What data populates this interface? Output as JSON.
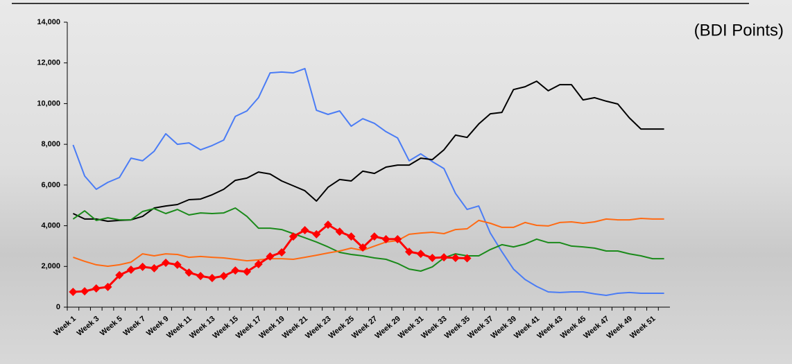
{
  "chart_data": {
    "type": "line",
    "annotation": "(BDI Points)",
    "categories": [
      "Week 1",
      null,
      "Week 3",
      null,
      "Week 5",
      null,
      "Week 7",
      null,
      "Week 9",
      null,
      "Week 11",
      null,
      "Week 13",
      null,
      "Week 15",
      null,
      "Week 17",
      null,
      "Week 19",
      null,
      "Week 21",
      null,
      "Week 23",
      null,
      "Week 25",
      null,
      "Week 27",
      null,
      "Week 29",
      null,
      "Week 31",
      null,
      "Week 33",
      null,
      "Week 35",
      null,
      "Week 37",
      null,
      "Week 39",
      null,
      "Week 41",
      null,
      "Week 43",
      null,
      "Week 45",
      null,
      "Week 47",
      null,
      "Week 49",
      null,
      "Week 51",
      null
    ],
    "ylim": [
      0,
      14000
    ],
    "yticks": [
      {
        "value": 0,
        "label": "0"
      },
      {
        "value": 2000,
        "label": "2,000"
      },
      {
        "value": 4000,
        "label": "4,000"
      },
      {
        "value": 6000,
        "label": "6,000"
      },
      {
        "value": 8000,
        "label": "8,000"
      },
      {
        "value": 10000,
        "label": "10,000"
      },
      {
        "value": 12000,
        "label": "12,000"
      },
      {
        "value": 14000,
        "label": "14,000"
      }
    ],
    "grid": false,
    "series": [
      {
        "color": "#4a7cf5",
        "values": [
          7970,
          6440,
          5790,
          6130,
          6370,
          7320,
          7190,
          7660,
          8520,
          8000,
          8070,
          7730,
          7940,
          8210,
          9370,
          9640,
          10290,
          11510,
          11550,
          11510,
          11720,
          9670,
          9470,
          9640,
          8890,
          9260,
          9030,
          8620,
          8310,
          7190,
          7530,
          7150,
          6810,
          5590,
          4800,
          4970,
          3640,
          2720,
          1870,
          1360,
          1020,
          750,
          720,
          750,
          750,
          650,
          580,
          680,
          720,
          680,
          680,
          680
        ]
      },
      {
        "color": "#000000",
        "values": [
          4600,
          4330,
          4330,
          4220,
          4260,
          4290,
          4460,
          4870,
          4970,
          5040,
          5280,
          5310,
          5520,
          5790,
          6230,
          6340,
          6640,
          6540,
          6200,
          5960,
          5720,
          5210,
          5890,
          6270,
          6200,
          6680,
          6570,
          6880,
          6980,
          6980,
          7320,
          7250,
          7730,
          8450,
          8340,
          9000,
          9500,
          9570,
          10690,
          10830,
          11100,
          10630,
          10930,
          10930,
          10180,
          10290,
          10120,
          9980,
          9300,
          8750,
          8750,
          8750
        ]
      },
      {
        "color": "#1a8a1a",
        "values": [
          4330,
          4730,
          4260,
          4390,
          4290,
          4290,
          4700,
          4840,
          4600,
          4800,
          4530,
          4630,
          4600,
          4630,
          4870,
          4460,
          3880,
          3880,
          3810,
          3610,
          3410,
          3200,
          2960,
          2690,
          2590,
          2520,
          2420,
          2350,
          2150,
          1870,
          1770,
          1980,
          2420,
          2620,
          2520,
          2520,
          2830,
          3070,
          2960,
          3100,
          3340,
          3170,
          3170,
          3000,
          2960,
          2900,
          2760,
          2760,
          2620,
          2520,
          2380,
          2380
        ]
      },
      {
        "color": "#ff6a13",
        "values": [
          2450,
          2250,
          2080,
          2010,
          2080,
          2210,
          2620,
          2520,
          2620,
          2590,
          2450,
          2490,
          2450,
          2420,
          2350,
          2280,
          2320,
          2380,
          2380,
          2350,
          2450,
          2550,
          2660,
          2760,
          2900,
          2790,
          3000,
          3200,
          3270,
          3580,
          3640,
          3680,
          3610,
          3810,
          3850,
          4260,
          4120,
          3920,
          3920,
          4160,
          4020,
          3990,
          4160,
          4190,
          4120,
          4190,
          4330,
          4290,
          4290,
          4360,
          4330,
          4330
        ]
      },
      {
        "color": "#ff0000",
        "markers": true,
        "values": [
          750,
          780,
          920,
          990,
          1570,
          1840,
          1980,
          1910,
          2180,
          2080,
          1700,
          1530,
          1430,
          1530,
          1800,
          1740,
          2110,
          2490,
          2690,
          3470,
          3780,
          3580,
          4050,
          3710,
          3470,
          2930,
          3470,
          3340,
          3340,
          2720,
          2620,
          2420,
          2450,
          2420,
          2400,
          null,
          null,
          null,
          null,
          null,
          null,
          null,
          null,
          null,
          null,
          null,
          null,
          null,
          null,
          null,
          null,
          null
        ]
      }
    ]
  }
}
